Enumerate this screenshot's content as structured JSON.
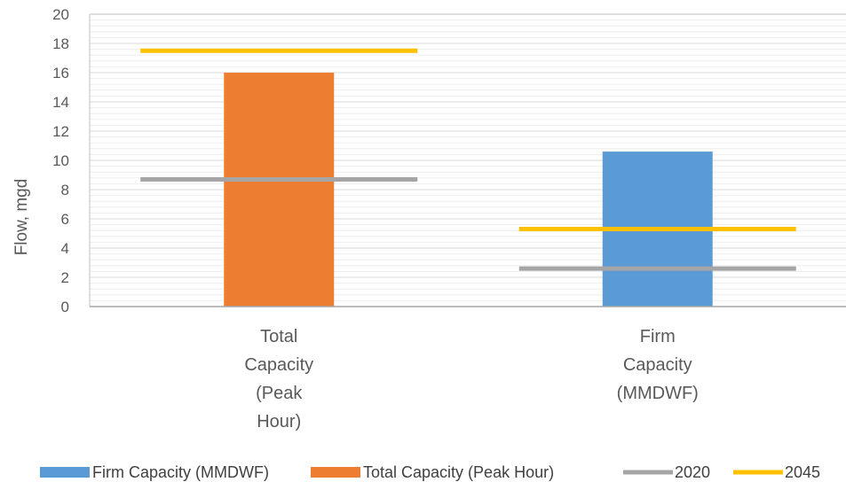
{
  "colors": {
    "firm": "#5b9bd5",
    "total": "#ed7d31",
    "y2020": "#a5a5a5",
    "y2045": "#ffc000",
    "grid_major": "#d9d9d9",
    "grid_minor": "#eeeeee",
    "axis": "#a6a6a6",
    "frame": "#bfbfbf"
  },
  "chart_data": {
    "type": "bar",
    "categories": [
      [
        "Total",
        "Capacity",
        "(Peak",
        "Hour)"
      ],
      [
        "Firm",
        "Capacity",
        "(MMDWF)"
      ]
    ],
    "ylabel": "Flow, mgd",
    "ylim": [
      0,
      20
    ],
    "yticks": [
      0,
      2,
      4,
      6,
      8,
      10,
      12,
      14,
      16,
      18,
      20
    ],
    "grid": true,
    "legend_position": "bottom",
    "bars": [
      {
        "series": "Total Capacity (Peak Hour)",
        "category_index": 0,
        "value": 16.0
      },
      {
        "series": "Firm Capacity (MMDWF)",
        "category_index": 1,
        "value": 10.6
      }
    ],
    "lines": [
      {
        "series": "2020",
        "values": [
          8.7,
          2.6
        ]
      },
      {
        "series": "2045",
        "values": [
          17.5,
          5.3
        ]
      }
    ],
    "legend": [
      {
        "label": "Firm Capacity (MMDWF)",
        "kind": "bar",
        "color_key": "firm"
      },
      {
        "label": "Total Capacity (Peak Hour)",
        "kind": "bar",
        "color_key": "total"
      },
      {
        "label": "2020",
        "kind": "line",
        "color_key": "y2020"
      },
      {
        "label": "2045",
        "kind": "line",
        "color_key": "y2045"
      }
    ]
  }
}
